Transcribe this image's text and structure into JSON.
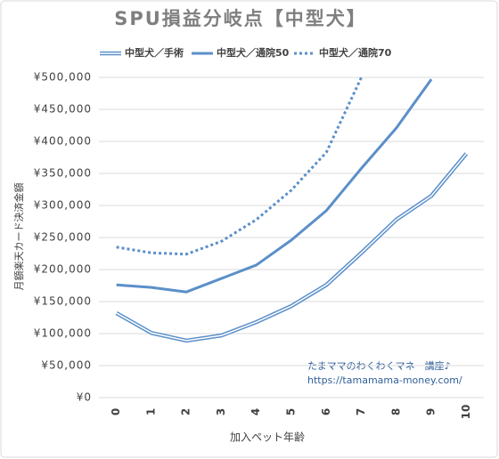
{
  "chart_data": {
    "type": "line",
    "title": "SPU損益分岐点【中型犬】",
    "x_label": "加入ペット年齢",
    "y_label": "月額楽天カード決済金額",
    "categories": [
      "0",
      "1",
      "2",
      "3",
      "4",
      "5",
      "6",
      "7",
      "8",
      "9",
      "10"
    ],
    "series": [
      {
        "name": "中型犬／手術",
        "color": "#5b8fc9",
        "line_style": "double",
        "values": [
          132000,
          101000,
          89000,
          97000,
          118000,
          143000,
          176000,
          226000,
          278000,
          315000,
          381000
        ]
      },
      {
        "name": "中型犬／通院50",
        "color": "#5b8fc9",
        "line_style": "solid",
        "values": [
          176000,
          172000,
          165000,
          186000,
          207000,
          246000,
          292000,
          358000,
          421000,
          497000,
          null
        ]
      },
      {
        "name": "中型犬／通院70",
        "color": "#5b8fc9",
        "line_style": "dotted",
        "values": [
          235000,
          226000,
          224000,
          244000,
          278000,
          324000,
          383000,
          500000,
          null,
          null,
          null
        ]
      }
    ],
    "ylim": [
      0,
      500000
    ],
    "yticks": [
      {
        "value": 0,
        "label": "¥0"
      },
      {
        "value": 50000,
        "label": "¥50,000"
      },
      {
        "value": 100000,
        "label": "¥100,000"
      },
      {
        "value": 150000,
        "label": "¥150,000"
      },
      {
        "value": 200000,
        "label": "¥200,000"
      },
      {
        "value": 250000,
        "label": "¥250,000"
      },
      {
        "value": 300000,
        "label": "¥300,000"
      },
      {
        "value": 350000,
        "label": "¥350,000"
      },
      {
        "value": 400000,
        "label": "¥400,000"
      },
      {
        "value": 450000,
        "label": "¥450,000"
      },
      {
        "value": 500000,
        "label": "¥500,000"
      }
    ],
    "grid": true,
    "legend": "top",
    "annotations": [
      "たまママのわくわくマネー講座♪",
      "https://tamamama-money.com/"
    ]
  }
}
